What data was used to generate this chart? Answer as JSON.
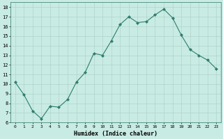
{
  "x": [
    0,
    1,
    2,
    3,
    4,
    5,
    6,
    7,
    8,
    9,
    10,
    11,
    12,
    13,
    14,
    15,
    16,
    17,
    18,
    19,
    20,
    21,
    22,
    23
  ],
  "y": [
    10.2,
    8.9,
    7.2,
    6.4,
    7.7,
    7.6,
    8.4,
    10.2,
    11.2,
    13.2,
    13.0,
    14.5,
    16.2,
    17.0,
    16.4,
    16.5,
    17.2,
    17.8,
    16.9,
    15.1,
    13.6,
    13.0,
    12.5,
    11.6
  ],
  "line_color": "#2e7d6e",
  "marker": "D",
  "marker_size": 2,
  "bg_color": "#c8ebe3",
  "grid_color": "#aacfc7",
  "xlabel": "Humidex (Indice chaleur)",
  "ylim": [
    6,
    18.5
  ],
  "xlim": [
    -0.5,
    23.5
  ],
  "yticks": [
    6,
    7,
    8,
    9,
    10,
    11,
    12,
    13,
    14,
    15,
    16,
    17,
    18
  ],
  "xticks": [
    0,
    1,
    2,
    3,
    4,
    5,
    6,
    7,
    8,
    9,
    10,
    11,
    12,
    13,
    14,
    15,
    16,
    17,
    18,
    19,
    20,
    21,
    22,
    23
  ]
}
